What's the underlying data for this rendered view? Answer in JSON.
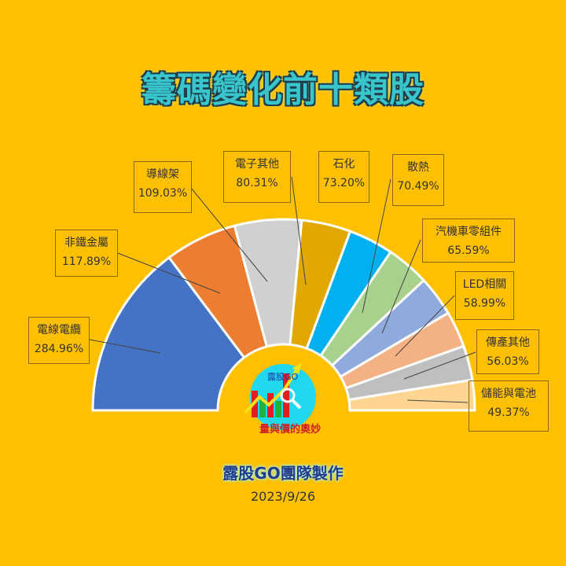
{
  "title": "籌碼變化前十類股",
  "footer": "露股GO團隊製作",
  "date": "2023/9/26",
  "logo": {
    "brand": "露股GO",
    "slogan": "量與價的奧妙"
  },
  "chart_data": {
    "type": "pie",
    "variant": "half-donut",
    "categories": [
      "電線電纜",
      "非鐵金屬",
      "導線架",
      "電子其他",
      "石化",
      "散熱",
      "汽機車零組件",
      "LED相關",
      "傳產其他",
      "儲能與電池"
    ],
    "values": [
      284.96,
      117.89,
      109.03,
      80.31,
      73.2,
      70.49,
      65.59,
      58.99,
      56.03,
      49.37
    ],
    "labels": [
      "284.96%",
      "117.89%",
      "109.03%",
      "80.31%",
      "73.20%",
      "70.49%",
      "65.59%",
      "58.99%",
      "56.03%",
      "49.37%"
    ],
    "colors": [
      "#4472C4",
      "#ED7D31",
      "#D0D0D0",
      "#E0A800",
      "#00B0F0",
      "#A9D18E",
      "#8FAADC",
      "#F4B183",
      "#BFBFBF",
      "#FFD591"
    ],
    "background": "#FFC000",
    "legend": "none"
  }
}
